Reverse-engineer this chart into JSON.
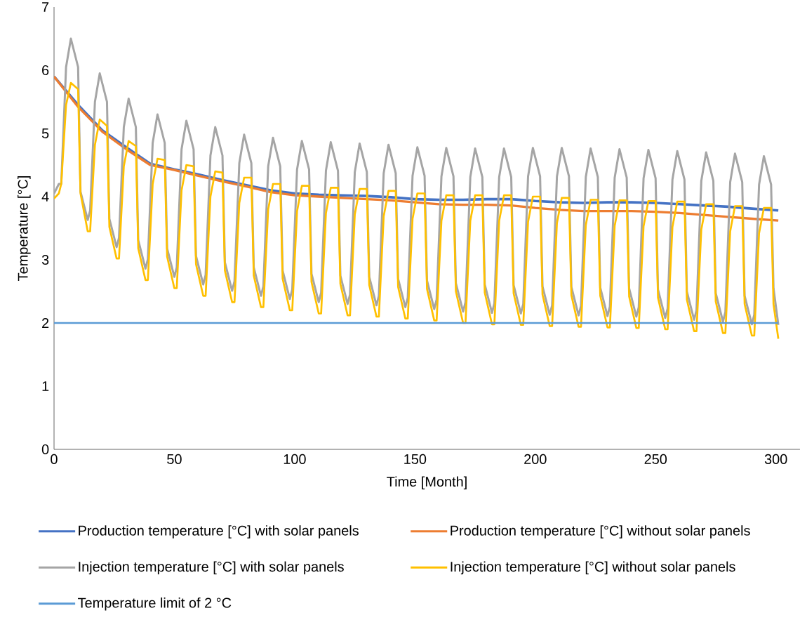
{
  "chart_data": {
    "type": "line",
    "xlabel": "Time [Month]",
    "ylabel": "Temperature [°C]",
    "xlim": [
      0,
      310
    ],
    "xticks": [
      0,
      50,
      100,
      150,
      200,
      250,
      300
    ],
    "ylim": [
      0,
      7
    ],
    "yticks": [
      0,
      1,
      2,
      3,
      4,
      5,
      6,
      7
    ],
    "legend": "bottom",
    "x": [
      0,
      10,
      20,
      30,
      40,
      50,
      60,
      70,
      80,
      90,
      100,
      110,
      120,
      130,
      140,
      150,
      160,
      170,
      180,
      190,
      200,
      210,
      220,
      230,
      240,
      250,
      260,
      270,
      280,
      290,
      301
    ],
    "series": [
      {
        "name": "Production temperature [°C] with solar panels",
        "color": "#4472c4",
        "values": [
          5.9,
          5.45,
          5.05,
          4.78,
          4.52,
          4.43,
          4.35,
          4.26,
          4.18,
          4.1,
          4.05,
          4.03,
          4.02,
          4.01,
          3.99,
          3.96,
          3.95,
          3.95,
          3.96,
          3.96,
          3.93,
          3.91,
          3.9,
          3.91,
          3.91,
          3.9,
          3.88,
          3.86,
          3.84,
          3.81,
          3.78
        ]
      },
      {
        "name": "Production temperature [°C] without solar panels",
        "color": "#ed7d31",
        "values": [
          5.9,
          5.42,
          5.03,
          4.75,
          4.5,
          4.42,
          4.33,
          4.24,
          4.16,
          4.07,
          4.02,
          4.0,
          3.98,
          3.96,
          3.94,
          3.91,
          3.88,
          3.87,
          3.87,
          3.86,
          3.82,
          3.79,
          3.77,
          3.77,
          3.77,
          3.76,
          3.74,
          3.71,
          3.68,
          3.65,
          3.62
        ]
      },
      {
        "name": "Injection temperature [°C] with solar panels",
        "color": "#a5a5a5",
        "x": [
          0,
          2,
          3,
          5,
          7,
          10,
          11,
          14,
          15,
          17,
          19,
          22,
          23,
          26,
          27,
          29,
          31,
          34,
          35,
          38,
          39,
          41,
          43,
          46,
          47,
          50,
          51,
          53,
          55,
          58,
          59,
          62,
          63,
          65,
          67,
          70,
          71,
          74,
          75,
          77,
          79,
          82,
          83,
          86,
          87,
          89,
          91,
          94,
          95,
          98,
          99,
          101,
          103,
          106,
          107,
          110,
          111,
          113,
          115,
          118,
          119,
          122,
          123,
          125,
          127,
          130,
          131,
          134,
          135,
          137,
          139,
          142,
          143,
          146,
          147,
          149,
          151,
          154,
          155,
          158,
          159,
          161,
          163,
          166,
          167,
          170,
          171,
          173,
          175,
          178,
          179,
          182,
          183,
          185,
          187,
          190,
          191,
          194,
          195,
          197,
          199,
          202,
          203,
          206,
          207,
          209,
          211,
          214,
          215,
          218,
          219,
          221,
          223,
          226,
          227,
          230,
          231,
          233,
          235,
          238,
          239,
          242,
          243,
          245,
          247,
          250,
          251,
          254,
          255,
          257,
          259,
          262,
          263,
          266,
          267,
          269,
          271,
          274,
          275,
          278,
          279,
          281,
          283,
          286,
          287,
          290,
          291,
          293,
          295,
          298,
          299,
          301
        ],
        "values": [
          4.05,
          4.2,
          4.2,
          6.05,
          6.5,
          6.05,
          4.08,
          3.63,
          3.78,
          5.5,
          5.95,
          5.5,
          3.65,
          3.2,
          3.35,
          5.1,
          5.55,
          5.1,
          3.31,
          2.86,
          3.01,
          4.85,
          5.3,
          4.85,
          3.18,
          2.73,
          2.88,
          4.75,
          5.2,
          4.75,
          3.06,
          2.61,
          2.76,
          4.65,
          5.1,
          4.65,
          2.96,
          2.51,
          2.66,
          4.53,
          4.98,
          4.53,
          2.88,
          2.43,
          2.58,
          4.48,
          4.93,
          4.48,
          2.83,
          2.38,
          2.53,
          4.43,
          4.88,
          4.43,
          2.78,
          2.33,
          2.48,
          4.41,
          4.86,
          4.41,
          2.75,
          2.3,
          2.45,
          4.39,
          4.84,
          4.39,
          2.73,
          2.28,
          2.43,
          4.37,
          4.82,
          4.37,
          2.7,
          2.25,
          2.4,
          4.33,
          4.78,
          4.33,
          2.67,
          2.22,
          2.37,
          4.32,
          4.77,
          4.32,
          2.63,
          2.18,
          2.33,
          4.31,
          4.76,
          4.31,
          2.61,
          2.16,
          2.31,
          4.31,
          4.76,
          4.31,
          2.6,
          2.15,
          2.3,
          4.32,
          4.77,
          4.32,
          2.58,
          2.13,
          2.28,
          4.32,
          4.77,
          4.32,
          2.57,
          2.12,
          2.27,
          4.31,
          4.76,
          4.31,
          2.56,
          2.11,
          2.26,
          4.3,
          4.75,
          4.3,
          2.55,
          2.1,
          2.25,
          4.29,
          4.74,
          4.29,
          2.53,
          2.08,
          2.23,
          4.27,
          4.72,
          4.27,
          2.5,
          2.05,
          2.2,
          4.25,
          4.7,
          4.25,
          2.47,
          2.02,
          2.17,
          4.23,
          4.68,
          4.23,
          2.43,
          1.98,
          2.13,
          4.19,
          4.64,
          4.19,
          2.55,
          1.97
        ]
      },
      {
        "name": "Injection temperature [°C] without solar panels",
        "color": "#ffc000",
        "x": [
          0,
          2,
          3,
          5,
          7,
          10,
          11,
          14,
          15,
          17,
          19,
          22,
          23,
          26,
          27,
          29,
          31,
          34,
          35,
          38,
          39,
          41,
          43,
          46,
          47,
          50,
          51,
          53,
          55,
          58,
          59,
          62,
          63,
          65,
          67,
          70,
          71,
          74,
          75,
          77,
          79,
          82,
          83,
          86,
          87,
          89,
          91,
          94,
          95,
          98,
          99,
          101,
          103,
          106,
          107,
          110,
          111,
          113,
          115,
          118,
          119,
          122,
          123,
          125,
          127,
          130,
          131,
          134,
          135,
          137,
          139,
          142,
          143,
          146,
          147,
          149,
          151,
          154,
          155,
          158,
          159,
          161,
          163,
          166,
          167,
          170,
          171,
          173,
          175,
          178,
          179,
          182,
          183,
          185,
          187,
          190,
          191,
          194,
          195,
          197,
          199,
          202,
          203,
          206,
          207,
          209,
          211,
          214,
          215,
          218,
          219,
          221,
          223,
          226,
          227,
          230,
          231,
          233,
          235,
          238,
          239,
          242,
          243,
          245,
          247,
          250,
          251,
          254,
          255,
          257,
          259,
          262,
          263,
          266,
          267,
          269,
          271,
          274,
          275,
          278,
          279,
          281,
          283,
          286,
          287,
          290,
          291,
          293,
          295,
          298,
          299,
          301
        ],
        "values": [
          3.97,
          4.05,
          4.2,
          5.45,
          5.8,
          5.7,
          4.05,
          3.45,
          3.45,
          4.82,
          5.22,
          5.12,
          3.52,
          3.02,
          3.02,
          4.48,
          4.88,
          4.8,
          3.18,
          2.68,
          2.68,
          4.2,
          4.6,
          4.58,
          3.05,
          2.55,
          2.55,
          4.1,
          4.5,
          4.48,
          2.93,
          2.43,
          2.43,
          4.0,
          4.4,
          4.38,
          2.83,
          2.33,
          2.33,
          3.9,
          4.3,
          4.3,
          2.75,
          2.25,
          2.25,
          3.8,
          4.2,
          4.2,
          2.7,
          2.2,
          2.2,
          3.77,
          4.17,
          4.17,
          2.65,
          2.15,
          2.15,
          3.74,
          4.14,
          4.14,
          2.62,
          2.12,
          2.12,
          3.72,
          4.12,
          4.12,
          2.6,
          2.1,
          2.1,
          3.69,
          4.09,
          4.09,
          2.57,
          2.07,
          2.07,
          3.65,
          4.05,
          4.05,
          2.54,
          2.04,
          2.04,
          3.62,
          4.02,
          4.02,
          2.5,
          2.0,
          2.0,
          3.62,
          4.02,
          4.02,
          2.48,
          1.98,
          1.98,
          3.62,
          4.02,
          4.02,
          2.47,
          1.97,
          1.97,
          3.6,
          4.0,
          4.0,
          2.45,
          1.95,
          1.95,
          3.58,
          3.98,
          3.98,
          2.44,
          1.94,
          1.94,
          3.55,
          3.95,
          3.95,
          2.43,
          1.93,
          1.93,
          3.54,
          3.94,
          3.94,
          2.42,
          1.92,
          1.92,
          3.53,
          3.93,
          3.93,
          2.4,
          1.9,
          1.9,
          3.52,
          3.92,
          3.92,
          2.37,
          1.87,
          1.87,
          3.48,
          3.88,
          3.88,
          2.34,
          1.84,
          1.84,
          3.45,
          3.85,
          3.85,
          2.3,
          1.8,
          1.8,
          3.42,
          3.82,
          3.82,
          2.3,
          1.75
        ]
      },
      {
        "name": "Temperature limit of 2 °C",
        "color": "#5b9bd5",
        "x": [
          0,
          301
        ],
        "values": [
          2,
          2
        ]
      }
    ]
  }
}
